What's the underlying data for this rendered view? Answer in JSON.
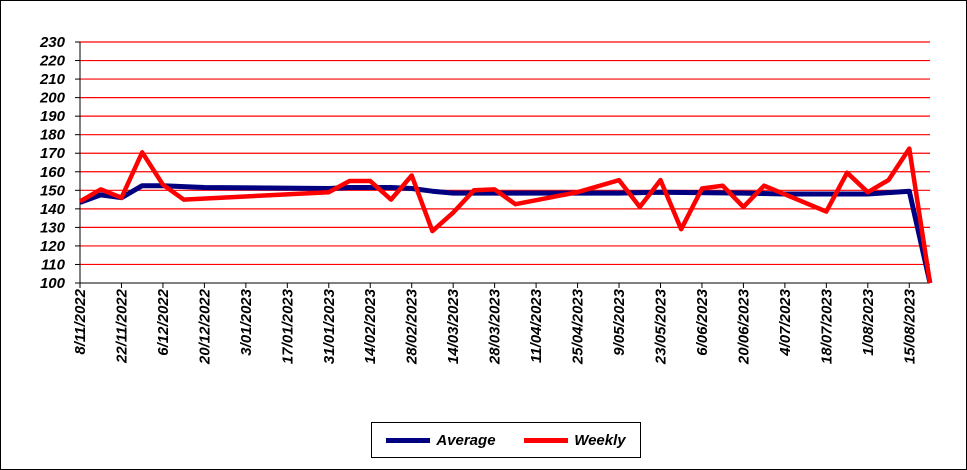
{
  "chart_data": {
    "type": "line",
    "title": "",
    "xlabel": "",
    "ylabel": "",
    "ylim": [
      100,
      230
    ],
    "yticks": [
      100,
      110,
      120,
      130,
      140,
      150,
      160,
      170,
      180,
      190,
      200,
      210,
      220,
      230
    ],
    "xlim": [
      "2022-11-08",
      "2023-08-22"
    ],
    "xtick_labels": [
      "8/11/2022",
      "22/11/2022",
      "6/12/2022",
      "20/12/2022",
      "3/01/2023",
      "17/01/2023",
      "31/01/2023",
      "14/02/2023",
      "28/02/2023",
      "14/03/2023",
      "28/03/2023",
      "11/04/2023",
      "25/04/2023",
      "9/05/2023",
      "23/05/2023",
      "6/06/2023",
      "20/06/2023",
      "4/07/2023",
      "18/07/2023",
      "1/08/2023",
      "15/08/2023"
    ],
    "grid": true,
    "grid_color": "#ff0000",
    "legend_position": "bottom",
    "series": [
      {
        "name": "Average",
        "color": "#000080",
        "x": [
          "2022-11-08",
          "2022-11-15",
          "2022-11-22",
          "2022-11-29",
          "2022-12-06",
          "2022-12-13",
          "2022-12-20",
          "2023-01-31",
          "2023-02-07",
          "2023-02-14",
          "2023-02-21",
          "2023-02-28",
          "2023-03-07",
          "2023-03-14",
          "2023-04-25",
          "2023-05-09",
          "2023-05-23",
          "2023-06-20",
          "2023-07-04",
          "2023-07-18",
          "2023-08-01",
          "2023-08-15",
          "2023-08-22"
        ],
        "values": [
          143.5,
          147.5,
          146,
          152.5,
          152.5,
          152,
          151.5,
          151,
          151.5,
          151.5,
          151.5,
          151,
          149.5,
          148.5,
          148.5,
          148.5,
          149,
          148.5,
          148,
          148,
          148,
          149.5,
          100
        ]
      },
      {
        "name": "Weekly",
        "color": "#ff0000",
        "x": [
          "2022-11-08",
          "2022-11-15",
          "2022-11-22",
          "2022-11-29",
          "2022-12-06",
          "2022-12-13",
          "2023-01-31",
          "2023-02-07",
          "2023-02-14",
          "2023-02-21",
          "2023-02-28",
          "2023-03-07",
          "2023-03-14",
          "2023-03-21",
          "2023-03-28",
          "2023-04-04",
          "2023-04-25",
          "2023-05-09",
          "2023-05-16",
          "2023-05-23",
          "2023-05-30",
          "2023-06-06",
          "2023-06-13",
          "2023-06-20",
          "2023-06-27",
          "2023-07-18",
          "2023-07-25",
          "2023-08-01",
          "2023-08-08",
          "2023-08-15",
          "2023-08-22"
        ],
        "values": [
          144,
          150.5,
          146,
          170.5,
          153,
          145,
          149,
          155,
          155,
          145,
          158,
          128,
          138,
          150,
          150.5,
          142.5,
          149,
          155.5,
          141,
          155.5,
          129,
          151,
          152.5,
          141,
          152.5,
          138.5,
          159.5,
          149,
          155.5,
          172.5,
          100
        ]
      }
    ]
  }
}
